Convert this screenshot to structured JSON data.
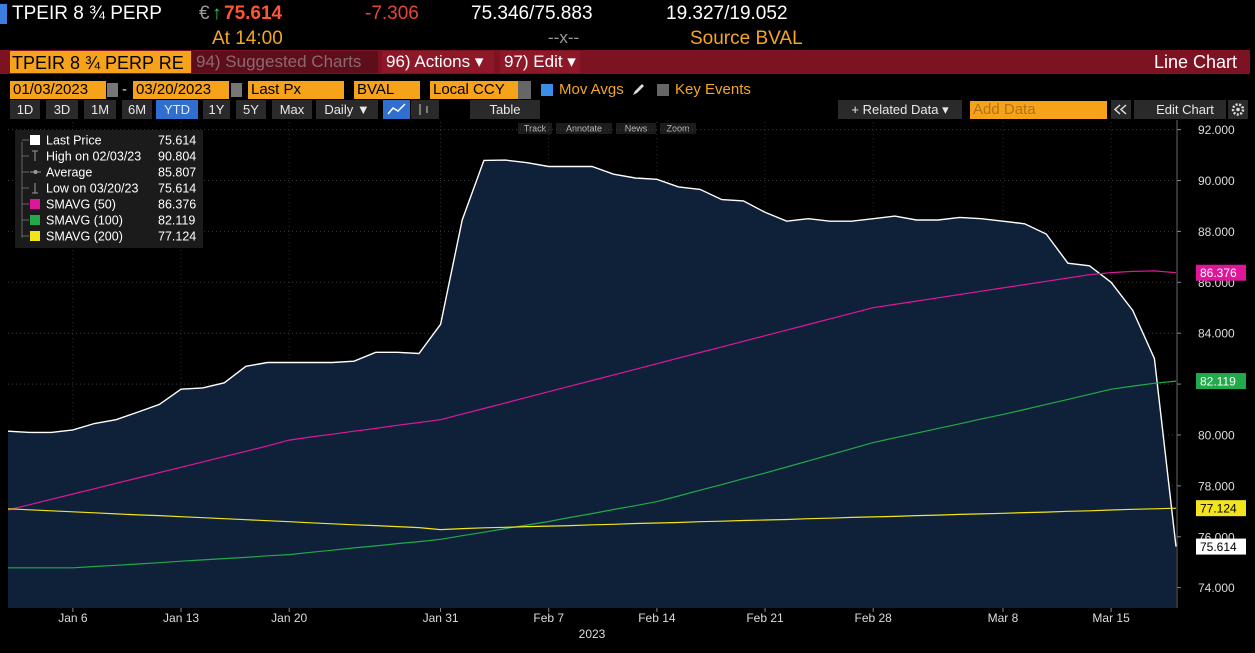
{
  "header": {
    "ticker": "TPEIR 8 ¾ PERP",
    "currency": "€",
    "arrow": "↑",
    "price": 75.614,
    "change": -7.306,
    "bid_ask": "75.346/75.883",
    "yields": "19.327/19.052",
    "time_label": "At 14:00",
    "size": "--x--",
    "source": "Source BVAL"
  },
  "toolbar": {
    "security_box": "TPEIR 8 ¾ PERP RE",
    "menus": [
      "94) Suggested Charts",
      "96) Actions ▾",
      "97) Edit ▾"
    ],
    "chart_type": "Line Chart"
  },
  "controls": {
    "start_date": "01/03/2023",
    "date_separator": "-",
    "end_date": "03/20/2023",
    "field": "Last Px",
    "source": "BVAL",
    "currency": "Local CCY",
    "mov_avgs": "Mov Avgs",
    "mov_avgs_on": true,
    "key_events": "Key Events",
    "key_events_on": false
  },
  "periods": [
    "1D",
    "3D",
    "1M",
    "6M",
    "YTD",
    "1Y",
    "5Y",
    "Max"
  ],
  "selected_period": "YTD",
  "frequency": "Daily ▼",
  "table": "Table",
  "related_data": "+ Related Data ▾",
  "add_data": "Add Data",
  "edit_chart": "Edit Chart",
  "chart_tools": [
    "Track",
    "Annotate",
    "News",
    "Zoom"
  ],
  "chart_data": {
    "type": "line",
    "categories": [
      null,
      null,
      null,
      "Jan 6",
      null,
      null,
      null,
      null,
      "Jan 13",
      null,
      null,
      null,
      null,
      "Jan 20",
      null,
      null,
      null,
      null,
      null,
      null,
      "Jan 31",
      null,
      null,
      null,
      null,
      "Feb 7",
      null,
      null,
      null,
      null,
      "Feb 14",
      null,
      null,
      null,
      null,
      "Feb 21",
      null,
      null,
      null,
      null,
      "Feb 28",
      null,
      null,
      null,
      null,
      null,
      "Mar 8",
      null,
      null,
      null,
      null,
      "Mar 15",
      null,
      null,
      null
    ],
    "x_axis_label": "2023",
    "ylim": [
      73.2,
      92.3
    ],
    "yticks": [
      {
        "value": 74,
        "label": "74.000"
      },
      {
        "value": 76,
        "label": "76.000"
      },
      {
        "value": 78,
        "label": "78.000"
      },
      {
        "value": 80,
        "label": "80.000"
      },
      {
        "value": 82,
        "label": "82.000"
      },
      {
        "value": 84,
        "label": "84.000"
      },
      {
        "value": 86,
        "label": "86.000"
      },
      {
        "value": 88,
        "label": "88.000"
      },
      {
        "value": 90,
        "label": "90.000"
      },
      {
        "value": 92,
        "label": "92.000"
      }
    ],
    "grid": true,
    "series": [
      {
        "name": "Last Price",
        "color": "#ffffff",
        "fill": "#0f2039",
        "values": [
          80.15,
          80.1,
          80.1,
          80.2,
          80.45,
          80.6,
          80.9,
          81.2,
          81.8,
          81.85,
          82.05,
          82.7,
          82.85,
          82.85,
          82.85,
          82.85,
          82.9,
          83.25,
          83.25,
          83.2,
          84.35,
          88.45,
          90.79,
          90.804,
          90.7,
          90.55,
          90.55,
          90.55,
          90.25,
          90.1,
          90.05,
          89.75,
          89.65,
          89.25,
          89.2,
          88.75,
          88.4,
          88.5,
          88.4,
          88.4,
          88.5,
          88.6,
          88.45,
          88.45,
          88.55,
          88.5,
          88.4,
          88.3,
          87.9,
          86.75,
          86.65,
          86.0,
          84.9,
          83.0,
          75.614
        ]
      },
      {
        "name": "SMAVG (50)",
        "color": "#e0169a",
        "values": [
          77.05,
          77.26,
          77.47,
          77.68,
          77.89,
          78.1,
          78.31,
          78.52,
          78.73,
          78.94,
          79.15,
          79.36,
          79.57,
          79.8,
          79.92,
          80.03,
          80.15,
          80.26,
          80.38,
          80.49,
          80.6,
          80.82,
          81.04,
          81.26,
          81.48,
          81.7,
          81.92,
          82.14,
          82.36,
          82.58,
          82.8,
          83.02,
          83.24,
          83.46,
          83.68,
          83.9,
          84.12,
          84.34,
          84.56,
          84.78,
          85.0,
          85.13,
          85.26,
          85.39,
          85.52,
          85.65,
          85.78,
          85.91,
          86.04,
          86.17,
          86.3,
          86.38,
          86.43,
          86.45,
          86.376
        ]
      },
      {
        "name": "SMAVG (100)",
        "color": "#22a94a",
        "values": [
          74.78,
          74.78,
          74.78,
          74.78,
          74.83,
          74.88,
          74.93,
          74.98,
          75.04,
          75.09,
          75.14,
          75.19,
          75.25,
          75.3,
          75.39,
          75.47,
          75.56,
          75.64,
          75.73,
          75.81,
          75.9,
          76.04,
          76.18,
          76.32,
          76.46,
          76.6,
          76.76,
          76.91,
          77.07,
          77.22,
          77.38,
          77.6,
          77.83,
          78.05,
          78.28,
          78.5,
          78.74,
          78.98,
          79.22,
          79.46,
          79.7,
          79.89,
          80.07,
          80.26,
          80.44,
          80.63,
          80.81,
          81.0,
          81.2,
          81.4,
          81.6,
          81.8,
          81.92,
          82.03,
          82.119
        ]
      },
      {
        "name": "SMAVG (200)",
        "color": "#f2e51e",
        "values": [
          77.1,
          77.06,
          77.02,
          76.98,
          76.94,
          76.9,
          76.86,
          76.83,
          76.79,
          76.75,
          76.71,
          76.67,
          76.63,
          76.59,
          76.55,
          76.51,
          76.47,
          76.44,
          76.4,
          76.36,
          76.28,
          76.32,
          76.35,
          76.37,
          76.4,
          76.42,
          76.44,
          76.47,
          76.49,
          76.52,
          76.54,
          76.56,
          76.59,
          76.61,
          76.64,
          76.66,
          76.68,
          76.71,
          76.73,
          76.76,
          76.78,
          76.8,
          76.83,
          76.85,
          76.88,
          76.9,
          76.92,
          76.95,
          76.97,
          77.0,
          77.02,
          77.05,
          77.08,
          77.1,
          77.124
        ]
      }
    ],
    "stats": [
      {
        "label": "High on 02/03/23",
        "value": 90.804
      },
      {
        "label": "Average",
        "value": 85.807
      },
      {
        "label": "Low on 03/20/23",
        "value": 75.614
      }
    ]
  }
}
